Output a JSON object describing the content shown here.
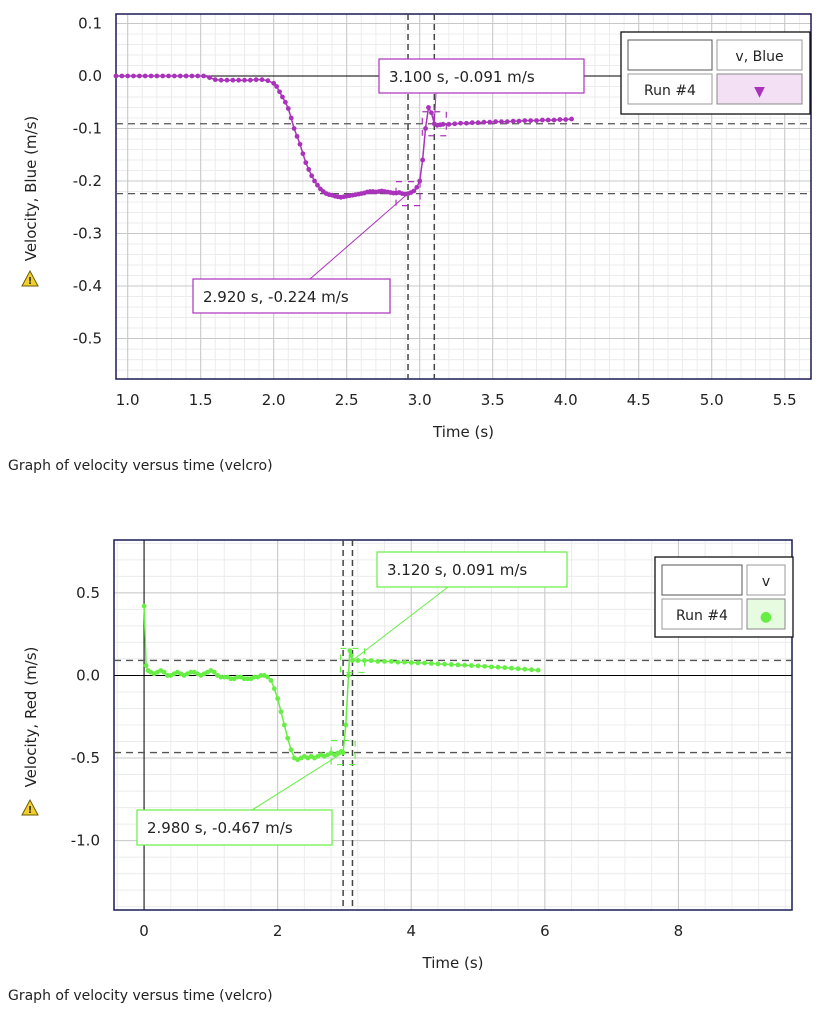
{
  "charts_meta": {
    "colors": {
      "grid_major": "#c8c8c8",
      "grid_minor": "#ececec",
      "frame": "#1a1a55"
    }
  },
  "chart_data": [
    {
      "type": "scatter",
      "caption": "Graph of velocity versus time (velcro)",
      "xlabel": "Time (s)",
      "ylabel": "Velocity, Blue (m/s)",
      "xlim": [
        0.92,
        5.68
      ],
      "ylim": [
        -0.577,
        0.118
      ],
      "x_ticks": [
        1.0,
        1.5,
        2.0,
        2.5,
        3.0,
        3.5,
        4.0,
        4.5,
        5.0,
        5.5
      ],
      "x_tick_labels": [
        "1.0",
        "1.5",
        "2.0",
        "2.5",
        "3.0",
        "3.5",
        "4.0",
        "4.5",
        "5.0",
        "5.5"
      ],
      "y_ticks": [
        0.1,
        0.0,
        -0.1,
        -0.2,
        -0.3,
        -0.4,
        -0.5
      ],
      "y_tick_labels": [
        "0.1",
        "0.0",
        "-0.1",
        "-0.2",
        "-0.3",
        "-0.4",
        "-0.5"
      ],
      "grid": true,
      "legend": {
        "header": "v, Blue",
        "run": "Run #4",
        "position": "top-right",
        "marker": "▼"
      },
      "series_color": "#aa33bb",
      "legend_bg": "#f3e0f5",
      "cursor_lines": {
        "x": [
          2.92,
          3.1
        ],
        "y": [
          -0.224,
          -0.091
        ]
      },
      "annotations": [
        {
          "x": 3.1,
          "y": -0.091,
          "text": "3.100 s, -0.091 m/s"
        },
        {
          "x": 2.92,
          "y": -0.224,
          "text": "2.920 s, -0.224 m/s"
        }
      ],
      "series": [
        {
          "name": "v, Blue",
          "points": [
            [
              0.92,
              0.0
            ],
            [
              0.96,
              0.0
            ],
            [
              1.0,
              0.0
            ],
            [
              1.04,
              0.0
            ],
            [
              1.08,
              0.0
            ],
            [
              1.12,
              0.0
            ],
            [
              1.16,
              0.0
            ],
            [
              1.2,
              0.0
            ],
            [
              1.24,
              0.0
            ],
            [
              1.28,
              0.0
            ],
            [
              1.32,
              0.0
            ],
            [
              1.36,
              0.0
            ],
            [
              1.4,
              0.0
            ],
            [
              1.44,
              0.0
            ],
            [
              1.48,
              0.0
            ],
            [
              1.52,
              0.0
            ],
            [
              1.56,
              -0.003
            ],
            [
              1.6,
              -0.007
            ],
            [
              1.64,
              -0.008
            ],
            [
              1.68,
              -0.008
            ],
            [
              1.72,
              -0.008
            ],
            [
              1.76,
              -0.008
            ],
            [
              1.8,
              -0.008
            ],
            [
              1.84,
              -0.008
            ],
            [
              1.88,
              -0.007
            ],
            [
              1.92,
              -0.007
            ],
            [
              1.96,
              -0.009
            ],
            [
              2.0,
              -0.014
            ],
            [
              2.02,
              -0.02
            ],
            [
              2.04,
              -0.03
            ],
            [
              2.06,
              -0.04
            ],
            [
              2.08,
              -0.05
            ],
            [
              2.1,
              -0.062
            ],
            [
              2.12,
              -0.08
            ],
            [
              2.14,
              -0.1
            ],
            [
              2.16,
              -0.115
            ],
            [
              2.18,
              -0.13
            ],
            [
              2.2,
              -0.148
            ],
            [
              2.22,
              -0.165
            ],
            [
              2.24,
              -0.178
            ],
            [
              2.26,
              -0.19
            ],
            [
              2.28,
              -0.2
            ],
            [
              2.3,
              -0.208
            ],
            [
              2.32,
              -0.215
            ],
            [
              2.34,
              -0.22
            ],
            [
              2.36,
              -0.224
            ],
            [
              2.38,
              -0.226
            ],
            [
              2.4,
              -0.227
            ],
            [
              2.42,
              -0.229
            ],
            [
              2.44,
              -0.23
            ],
            [
              2.46,
              -0.231
            ],
            [
              2.48,
              -0.23
            ],
            [
              2.5,
              -0.229
            ],
            [
              2.52,
              -0.228
            ],
            [
              2.54,
              -0.227
            ],
            [
              2.56,
              -0.226
            ],
            [
              2.58,
              -0.225
            ],
            [
              2.6,
              -0.224
            ],
            [
              2.62,
              -0.223
            ],
            [
              2.64,
              -0.221
            ],
            [
              2.66,
              -0.22
            ],
            [
              2.68,
              -0.22
            ],
            [
              2.7,
              -0.221
            ],
            [
              2.72,
              -0.22
            ],
            [
              2.74,
              -0.219
            ],
            [
              2.76,
              -0.22
            ],
            [
              2.78,
              -0.221
            ],
            [
              2.8,
              -0.222
            ],
            [
              2.82,
              -0.223
            ],
            [
              2.84,
              -0.223
            ],
            [
              2.86,
              -0.222
            ],
            [
              2.88,
              -0.224
            ],
            [
              2.9,
              -0.225
            ],
            [
              2.92,
              -0.224
            ],
            [
              2.94,
              -0.222
            ],
            [
              2.96,
              -0.219
            ],
            [
              2.98,
              -0.212
            ],
            [
              3.0,
              -0.2
            ],
            [
              3.02,
              -0.16
            ],
            [
              3.04,
              -0.1
            ],
            [
              3.06,
              -0.06
            ],
            [
              3.08,
              -0.07
            ],
            [
              3.1,
              -0.091
            ],
            [
              3.12,
              -0.094
            ],
            [
              3.14,
              -0.093
            ],
            [
              3.16,
              -0.092
            ],
            [
              3.2,
              -0.092
            ],
            [
              3.24,
              -0.091
            ],
            [
              3.28,
              -0.09
            ],
            [
              3.32,
              -0.09
            ],
            [
              3.36,
              -0.089
            ],
            [
              3.4,
              -0.089
            ],
            [
              3.44,
              -0.088
            ],
            [
              3.48,
              -0.088
            ],
            [
              3.52,
              -0.087
            ],
            [
              3.56,
              -0.087
            ],
            [
              3.6,
              -0.087
            ],
            [
              3.64,
              -0.086
            ],
            [
              3.68,
              -0.086
            ],
            [
              3.72,
              -0.085
            ],
            [
              3.76,
              -0.085
            ],
            [
              3.8,
              -0.085
            ],
            [
              3.84,
              -0.084
            ],
            [
              3.88,
              -0.084
            ],
            [
              3.92,
              -0.084
            ],
            [
              3.96,
              -0.083
            ],
            [
              4.0,
              -0.083
            ],
            [
              4.04,
              -0.082
            ]
          ]
        }
      ]
    },
    {
      "type": "scatter",
      "caption": "Graph of velocity versus time (velcro)",
      "xlabel": "Time (s)",
      "ylabel": "Velocity, Red (m/s)",
      "xlim": [
        -0.45,
        9.7
      ],
      "ylim": [
        -1.42,
        0.82
      ],
      "x_ticks": [
        0,
        2,
        4,
        6,
        8
      ],
      "x_tick_labels": [
        "0",
        "2",
        "4",
        "6",
        "8"
      ],
      "y_ticks": [
        0.5,
        0.0,
        -0.5,
        -1.0
      ],
      "y_tick_labels": [
        "0.5",
        "0.0",
        "-0.5",
        "-1.0"
      ],
      "grid": true,
      "legend": {
        "header": "v",
        "run": "Run #4",
        "position": "top-right",
        "marker": "●"
      },
      "series_color": "#66ee44",
      "legend_bg": "#e6fbe0",
      "cursor_lines": {
        "x": [
          2.98,
          3.12
        ],
        "y": [
          -0.467,
          0.091
        ]
      },
      "annotations": [
        {
          "x": 3.12,
          "y": 0.091,
          "text": "3.120 s, 0.091 m/s"
        },
        {
          "x": 2.98,
          "y": -0.467,
          "text": "2.980 s, -0.467 m/s"
        }
      ],
      "series": [
        {
          "name": "v",
          "points": [
            [
              0.0,
              0.42
            ],
            [
              0.03,
              0.06
            ],
            [
              0.06,
              0.03
            ],
            [
              0.1,
              0.02
            ],
            [
              0.15,
              0.01
            ],
            [
              0.2,
              0.02
            ],
            [
              0.25,
              0.03
            ],
            [
              0.3,
              0.02
            ],
            [
              0.35,
              0.0
            ],
            [
              0.4,
              0.0
            ],
            [
              0.45,
              0.01
            ],
            [
              0.5,
              0.02
            ],
            [
              0.55,
              0.01
            ],
            [
              0.6,
              0.0
            ],
            [
              0.65,
              0.01
            ],
            [
              0.7,
              0.02
            ],
            [
              0.75,
              0.02
            ],
            [
              0.8,
              0.01
            ],
            [
              0.85,
              0.0
            ],
            [
              0.9,
              0.01
            ],
            [
              0.95,
              0.02
            ],
            [
              1.0,
              0.03
            ],
            [
              1.05,
              0.02
            ],
            [
              1.1,
              0.0
            ],
            [
              1.15,
              -0.01
            ],
            [
              1.2,
              -0.01
            ],
            [
              1.25,
              -0.01
            ],
            [
              1.3,
              -0.02
            ],
            [
              1.35,
              -0.02
            ],
            [
              1.4,
              -0.01
            ],
            [
              1.45,
              -0.01
            ],
            [
              1.5,
              -0.02
            ],
            [
              1.55,
              -0.02
            ],
            [
              1.6,
              -0.02
            ],
            [
              1.65,
              -0.01
            ],
            [
              1.7,
              -0.01
            ],
            [
              1.75,
              0.0
            ],
            [
              1.8,
              0.0
            ],
            [
              1.85,
              -0.01
            ],
            [
              1.9,
              -0.03
            ],
            [
              1.95,
              -0.08
            ],
            [
              2.0,
              -0.14
            ],
            [
              2.05,
              -0.22
            ],
            [
              2.1,
              -0.3
            ],
            [
              2.15,
              -0.38
            ],
            [
              2.2,
              -0.45
            ],
            [
              2.25,
              -0.5
            ],
            [
              2.3,
              -0.51
            ],
            [
              2.35,
              -0.5
            ],
            [
              2.4,
              -0.49
            ],
            [
              2.45,
              -0.5
            ],
            [
              2.5,
              -0.49
            ],
            [
              2.55,
              -0.5
            ],
            [
              2.6,
              -0.49
            ],
            [
              2.65,
              -0.48
            ],
            [
              2.7,
              -0.49
            ],
            [
              2.75,
              -0.48
            ],
            [
              2.8,
              -0.47
            ],
            [
              2.85,
              -0.48
            ],
            [
              2.9,
              -0.47
            ],
            [
              2.95,
              -0.46
            ],
            [
              2.98,
              -0.467
            ],
            [
              3.02,
              -0.3
            ],
            [
              3.06,
              0.0
            ],
            [
              3.08,
              0.15
            ],
            [
              3.1,
              0.12
            ],
            [
              3.12,
              0.091
            ],
            [
              3.2,
              0.09
            ],
            [
              3.3,
              0.09
            ],
            [
              3.4,
              0.09
            ],
            [
              3.5,
              0.085
            ],
            [
              3.6,
              0.085
            ],
            [
              3.7,
              0.085
            ],
            [
              3.8,
              0.08
            ],
            [
              3.9,
              0.08
            ],
            [
              4.0,
              0.078
            ],
            [
              4.1,
              0.076
            ],
            [
              4.2,
              0.075
            ],
            [
              4.3,
              0.073
            ],
            [
              4.4,
              0.07
            ],
            [
              4.5,
              0.068
            ],
            [
              4.6,
              0.066
            ],
            [
              4.7,
              0.064
            ],
            [
              4.8,
              0.062
            ],
            [
              4.9,
              0.06
            ],
            [
              5.0,
              0.058
            ],
            [
              5.1,
              0.055
            ],
            [
              5.2,
              0.052
            ],
            [
              5.3,
              0.05
            ],
            [
              5.4,
              0.047
            ],
            [
              5.5,
              0.044
            ],
            [
              5.6,
              0.041
            ],
            [
              5.7,
              0.038
            ],
            [
              5.8,
              0.035
            ],
            [
              5.9,
              0.032
            ]
          ]
        }
      ]
    }
  ]
}
